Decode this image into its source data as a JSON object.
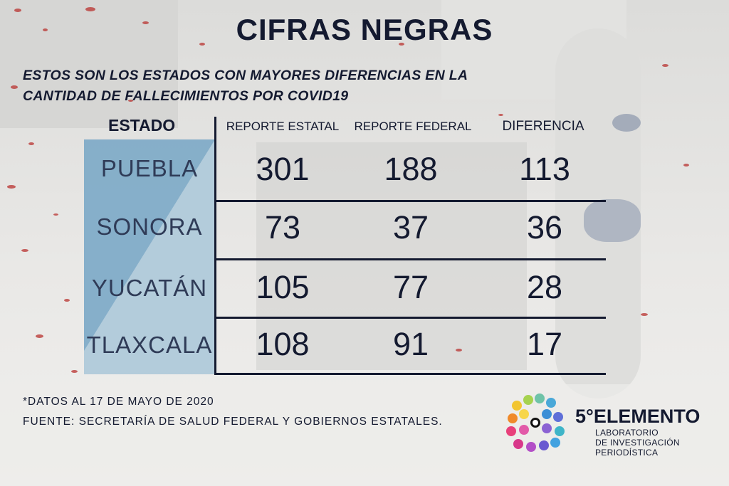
{
  "title": "CIFRAS NEGRAS",
  "subtitle_line1": "ESTOS SON LOS ESTADOS CON MAYORES DIFERENCIAS EN LA",
  "subtitle_line2": "CANTIDAD DE FALLECIMIENTOS POR COVID19",
  "table": {
    "headers": {
      "estado": "ESTADO",
      "estatal": "REPORTE ESTATAL",
      "federal": "REPORTE FEDERAL",
      "diferencia": "DIFERENCIA"
    },
    "rows": [
      {
        "estado": "PUEBLA",
        "estatal": "301",
        "federal": "188",
        "diferencia": "113"
      },
      {
        "estado": "SONORA",
        "estatal": "73",
        "federal": "37",
        "diferencia": "36"
      },
      {
        "estado": "YUCATÁN",
        "estatal": "105",
        "federal": "77",
        "diferencia": "28"
      },
      {
        "estado": "TLAXCALA",
        "estatal": "108",
        "federal": "91",
        "diferencia": "17"
      }
    ]
  },
  "footnote": "*DATOS AL 17 DE MAYO DE 2020",
  "source": "FUENTE: SECRETARÍA DE SALUD FEDERAL Y GOBIERNOS ESTATALES.",
  "logo": {
    "name": "5°ELEMENTO",
    "line1": "LABORATORIO",
    "line2": "DE INVESTIGACIÓN",
    "line3": "PERIODÍSTICA"
  },
  "colors": {
    "ink": "#141a30",
    "accent_blue": "#7ba9c6",
    "splatter": "#b8322f"
  }
}
